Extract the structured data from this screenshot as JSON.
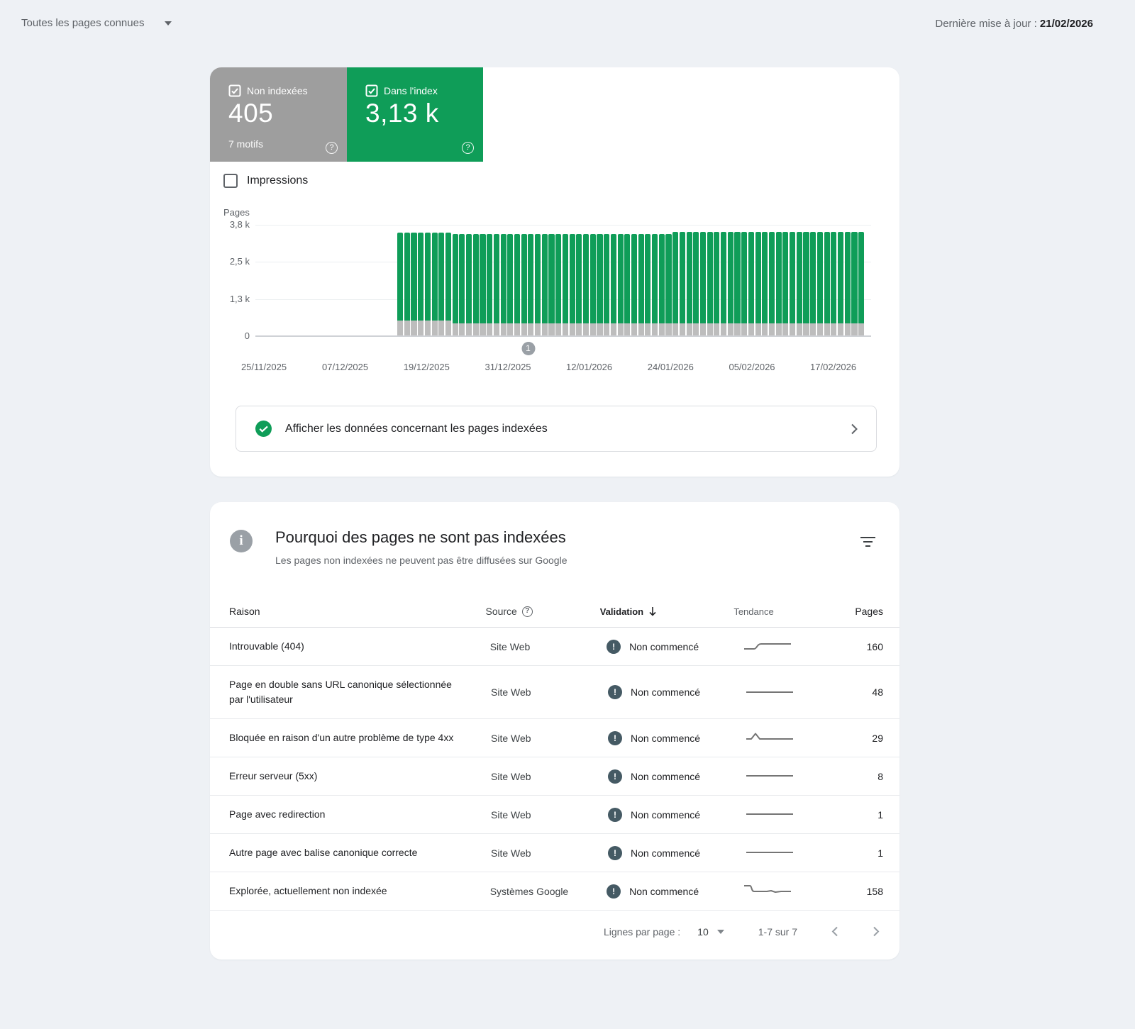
{
  "topbar": {
    "scope_label": "Toutes les pages connues",
    "last_update_label": "Dernière mise à jour :",
    "last_update_date": "21/02/2026"
  },
  "summary_cards": {
    "non_indexed": {
      "label": "Non indexées",
      "value": "405",
      "sublabel": "7 motifs",
      "color": "#9e9e9e",
      "checked": true
    },
    "indexed": {
      "label": "Dans l'index",
      "value": "3,13 k",
      "color": "#0f9d58",
      "checked": true
    }
  },
  "impressions_toggle": {
    "label": "Impressions",
    "checked": false
  },
  "chart_data": {
    "type": "bar",
    "stacked": true,
    "ylabel": "Pages",
    "y_ticks": [
      "3,8 k",
      "2,5 k",
      "1,3 k",
      "0"
    ],
    "y_max": 3800,
    "x_tick_labels": [
      "25/11/2025",
      "07/12/2025",
      "19/12/2025",
      "31/12/2025",
      "12/01/2026",
      "24/01/2026",
      "05/02/2026",
      "17/02/2026"
    ],
    "date_range_start": "16/12/2025",
    "date_range_end": "21/02/2026",
    "legend_position": "none",
    "annotation_marker": {
      "label": "1",
      "x_fraction": 0.443
    },
    "series": [
      {
        "name": "Non indexées",
        "color": "#bdbdbd",
        "values": [
          500,
          500,
          500,
          500,
          500,
          500,
          500,
          500,
          405,
          405,
          405,
          405,
          405,
          405,
          405,
          405,
          405,
          405,
          405,
          405,
          405,
          405,
          405,
          405,
          405,
          405,
          405,
          405,
          405,
          405,
          405,
          405,
          405,
          405,
          405,
          405,
          405,
          405,
          405,
          405,
          405,
          405,
          405,
          405,
          405,
          405,
          405,
          405,
          405,
          405,
          405,
          405,
          405,
          405,
          405,
          405,
          405,
          405,
          405,
          405,
          405,
          405,
          405,
          405,
          405,
          405,
          405,
          405
        ]
      },
      {
        "name": "Dans l'index",
        "color": "#0f9d58",
        "values": [
          3000,
          3000,
          3000,
          3000,
          3000,
          3000,
          3000,
          3000,
          3060,
          3060,
          3060,
          3060,
          3060,
          3060,
          3060,
          3060,
          3060,
          3060,
          3060,
          3060,
          3060,
          3060,
          3060,
          3060,
          3060,
          3060,
          3060,
          3060,
          3060,
          3060,
          3060,
          3060,
          3060,
          3060,
          3060,
          3060,
          3060,
          3060,
          3060,
          3060,
          3130,
          3130,
          3130,
          3130,
          3130,
          3130,
          3130,
          3130,
          3130,
          3130,
          3130,
          3130,
          3130,
          3130,
          3130,
          3130,
          3130,
          3130,
          3130,
          3130,
          3130,
          3130,
          3130,
          3130,
          3130,
          3130,
          3130,
          3130
        ]
      }
    ]
  },
  "banner": {
    "text": "Afficher les données concernant les pages indexées"
  },
  "issues_panel": {
    "title": "Pourquoi des pages ne sont pas indexées",
    "subtitle": "Les pages non indexées ne peuvent pas être diffusées sur Google",
    "columns": {
      "reason": "Raison",
      "source": "Source",
      "validation": "Validation",
      "trend": "Tendance",
      "pages": "Pages"
    },
    "rows": [
      {
        "reason": "Introuvable (404)",
        "source": "Site Web",
        "validation": "Non commencé",
        "trend": "step-up",
        "pages": "160"
      },
      {
        "reason": "Page en double sans URL canonique sélectionnée par l'utilisateur",
        "source": "Site Web",
        "validation": "Non commencé",
        "trend": "flat",
        "pages": "48"
      },
      {
        "reason": "Bloquée en raison d'un autre problème de type 4xx",
        "source": "Site Web",
        "validation": "Non commencé",
        "trend": "spike",
        "pages": "29"
      },
      {
        "reason": "Erreur serveur (5xx)",
        "source": "Site Web",
        "validation": "Non commencé",
        "trend": "flat",
        "pages": "8"
      },
      {
        "reason": "Page avec redirection",
        "source": "Site Web",
        "validation": "Non commencé",
        "trend": "flat",
        "pages": "1"
      },
      {
        "reason": "Autre page avec balise canonique correcte",
        "source": "Site Web",
        "validation": "Non commencé",
        "trend": "flat",
        "pages": "1"
      },
      {
        "reason": "Explorée, actuellement non indexée",
        "source": "Systèmes Google",
        "validation": "Non commencé",
        "trend": "drop-wavy",
        "pages": "158"
      }
    ],
    "pagination": {
      "rows_per_page_label": "Lignes par page :",
      "rows_per_page": "10",
      "range": "1-7 sur 7"
    }
  }
}
